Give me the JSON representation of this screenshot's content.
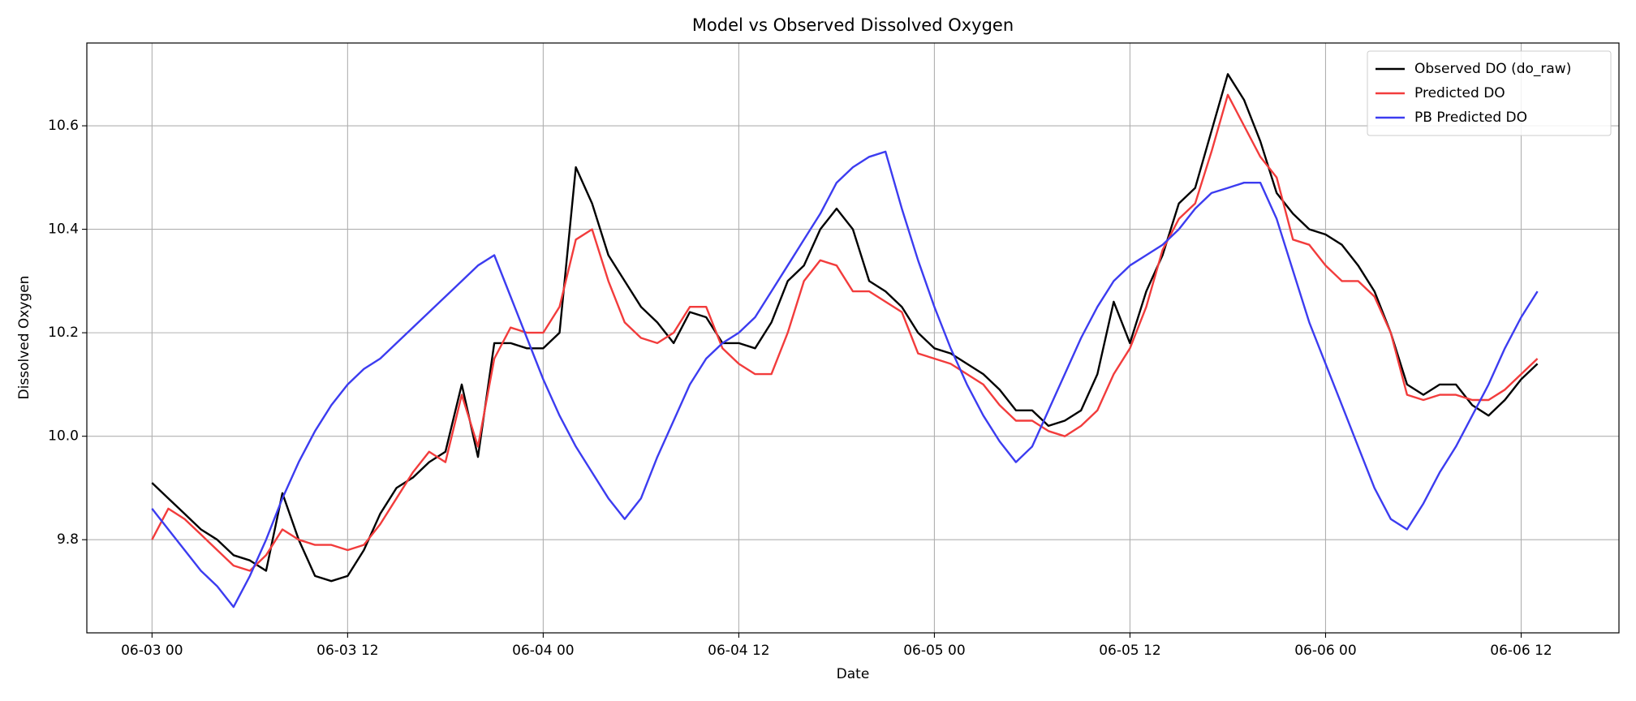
{
  "chart_data": {
    "type": "line",
    "title": "Model vs Observed Dissolved Oxygen",
    "x_label": "Date",
    "y_label": "Dissolved Oxygen",
    "x": [
      "06-03 00",
      "06-03 01",
      "06-03 02",
      "06-03 03",
      "06-03 04",
      "06-03 05",
      "06-03 06",
      "06-03 07",
      "06-03 08",
      "06-03 09",
      "06-03 10",
      "06-03 11",
      "06-03 12",
      "06-03 13",
      "06-03 14",
      "06-03 15",
      "06-03 16",
      "06-03 17",
      "06-03 18",
      "06-03 19",
      "06-03 20",
      "06-03 21",
      "06-03 22",
      "06-03 23",
      "06-04 00",
      "06-04 01",
      "06-04 02",
      "06-04 03",
      "06-04 04",
      "06-04 05",
      "06-04 06",
      "06-04 07",
      "06-04 08",
      "06-04 09",
      "06-04 10",
      "06-04 11",
      "06-04 12",
      "06-04 13",
      "06-04 14",
      "06-04 15",
      "06-04 16",
      "06-04 17",
      "06-04 18",
      "06-04 19",
      "06-04 20",
      "06-04 21",
      "06-04 22",
      "06-04 23",
      "06-05 00",
      "06-05 01",
      "06-05 02",
      "06-05 03",
      "06-05 04",
      "06-05 05",
      "06-05 06",
      "06-05 07",
      "06-05 08",
      "06-05 09",
      "06-05 10",
      "06-05 11",
      "06-05 12",
      "06-05 13",
      "06-05 14",
      "06-05 15",
      "06-05 16",
      "06-05 17",
      "06-05 18",
      "06-05 19",
      "06-05 20",
      "06-05 21",
      "06-05 22",
      "06-05 23",
      "06-06 00",
      "06-06 01",
      "06-06 02",
      "06-06 03",
      "06-06 04",
      "06-06 05",
      "06-06 06",
      "06-06 07",
      "06-06 08",
      "06-06 09",
      "06-06 10",
      "06-06 11",
      "06-06 12",
      "06-06 13"
    ],
    "series": [
      {
        "name": "Observed DO (do_raw)",
        "color": "#000000",
        "values": [
          9.91,
          9.88,
          9.85,
          9.82,
          9.8,
          9.77,
          9.76,
          9.74,
          9.89,
          9.8,
          9.73,
          9.72,
          9.73,
          9.78,
          9.85,
          9.9,
          9.92,
          9.95,
          9.97,
          10.1,
          9.96,
          10.18,
          10.18,
          10.17,
          10.17,
          10.2,
          10.52,
          10.45,
          10.35,
          10.3,
          10.25,
          10.22,
          10.18,
          10.24,
          10.23,
          10.18,
          10.18,
          10.17,
          10.22,
          10.3,
          10.33,
          10.4,
          10.44,
          10.4,
          10.3,
          10.28,
          10.25,
          10.2,
          10.17,
          10.16,
          10.14,
          10.12,
          10.09,
          10.05,
          10.05,
          10.02,
          10.03,
          10.05,
          10.12,
          10.26,
          10.18,
          10.28,
          10.35,
          10.45,
          10.48,
          10.59,
          10.7,
          10.65,
          10.57,
          10.47,
          10.43,
          10.4,
          10.39,
          10.37,
          10.33,
          10.28,
          10.2,
          10.1,
          10.08,
          10.1,
          10.1,
          10.06,
          10.04,
          10.07,
          10.11,
          10.14
        ]
      },
      {
        "name": "Predicted DO",
        "color": "#f23c3c",
        "values": [
          9.8,
          9.86,
          9.84,
          9.81,
          9.78,
          9.75,
          9.74,
          9.77,
          9.82,
          9.8,
          9.79,
          9.79,
          9.78,
          9.79,
          9.83,
          9.88,
          9.93,
          9.97,
          9.95,
          10.08,
          9.98,
          10.15,
          10.21,
          10.2,
          10.2,
          10.25,
          10.38,
          10.4,
          10.3,
          10.22,
          10.19,
          10.18,
          10.2,
          10.25,
          10.25,
          10.17,
          10.14,
          10.12,
          10.12,
          10.2,
          10.3,
          10.34,
          10.33,
          10.28,
          10.28,
          10.26,
          10.24,
          10.16,
          10.15,
          10.14,
          10.12,
          10.1,
          10.06,
          10.03,
          10.03,
          10.01,
          10.0,
          10.02,
          10.05,
          10.12,
          10.17,
          10.25,
          10.36,
          10.42,
          10.45,
          10.55,
          10.66,
          10.6,
          10.54,
          10.5,
          10.38,
          10.37,
          10.33,
          10.3,
          10.3,
          10.27,
          10.2,
          10.08,
          10.07,
          10.08,
          10.08,
          10.07,
          10.07,
          10.09,
          10.12,
          10.15
        ]
      },
      {
        "name": "PB Predicted DO",
        "color": "#3c3cf0",
        "values": [
          9.86,
          9.82,
          9.78,
          9.74,
          9.71,
          9.67,
          9.73,
          9.8,
          9.88,
          9.95,
          10.01,
          10.06,
          10.1,
          10.13,
          10.15,
          10.18,
          10.21,
          10.24,
          10.27,
          10.3,
          10.33,
          10.35,
          10.27,
          10.19,
          10.11,
          10.04,
          9.98,
          9.93,
          9.88,
          9.84,
          9.88,
          9.96,
          10.03,
          10.1,
          10.15,
          10.18,
          10.2,
          10.23,
          10.28,
          10.33,
          10.38,
          10.43,
          10.49,
          10.52,
          10.54,
          10.55,
          10.44,
          10.34,
          10.25,
          10.17,
          10.1,
          10.04,
          9.99,
          9.95,
          9.98,
          10.05,
          10.12,
          10.19,
          10.25,
          10.3,
          10.33,
          10.35,
          10.37,
          10.4,
          10.44,
          10.47,
          10.48,
          10.49,
          10.49,
          10.42,
          10.32,
          10.22,
          10.14,
          10.06,
          9.98,
          9.9,
          9.84,
          9.82,
          9.87,
          9.93,
          9.98,
          10.04,
          10.1,
          10.17,
          10.23,
          10.28
        ]
      }
    ],
    "xlim": [
      "06-02 20",
      "06-06 18"
    ],
    "xticks": [
      "06-03 00",
      "06-03 12",
      "06-04 00",
      "06-04 12",
      "06-05 00",
      "06-05 12",
      "06-06 00",
      "06-06 12"
    ],
    "ylim": [
      9.62,
      10.76
    ],
    "yticks": [
      9.8,
      {
        "value": 10,
        "label": "10.0"
      },
      10.2,
      10.4,
      10.6
    ],
    "grid": true,
    "legend": "upper right"
  }
}
